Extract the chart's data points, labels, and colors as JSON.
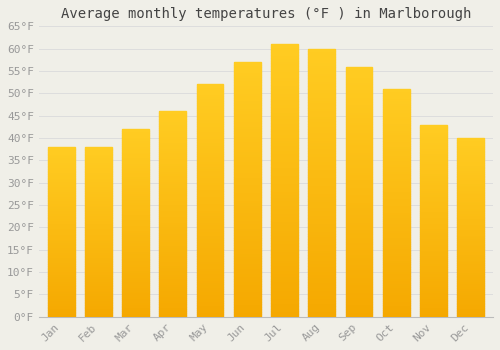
{
  "title": "Average monthly temperatures (°F ) in Marlborough",
  "months": [
    "Jan",
    "Feb",
    "Mar",
    "Apr",
    "May",
    "Jun",
    "Jul",
    "Aug",
    "Sep",
    "Oct",
    "Nov",
    "Dec"
  ],
  "values": [
    38,
    38,
    42,
    46,
    52,
    57,
    61,
    60,
    56,
    51,
    43,
    40
  ],
  "bar_color_top": "#FFC825",
  "bar_color_bottom": "#F5A800",
  "background_color": "#F0EFE8",
  "grid_color": "#DDDDDD",
  "ylim": [
    0,
    65
  ],
  "yticks": [
    0,
    5,
    10,
    15,
    20,
    25,
    30,
    35,
    40,
    45,
    50,
    55,
    60,
    65
  ],
  "ytick_labels": [
    "0°F",
    "5°F",
    "10°F",
    "15°F",
    "20°F",
    "25°F",
    "30°F",
    "35°F",
    "40°F",
    "45°F",
    "50°F",
    "55°F",
    "60°F",
    "65°F"
  ],
  "title_fontsize": 10,
  "tick_fontsize": 8,
  "tick_color": "#999999",
  "spine_color": "#BBBBBB"
}
